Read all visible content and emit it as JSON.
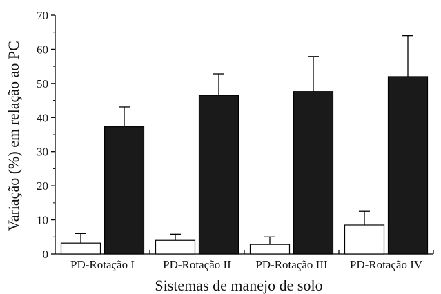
{
  "chart_data": {
    "type": "bar",
    "xlabel": "Sistemas de manejo de solo",
    "ylabel": "Variação (%) em relação ao PC",
    "categories": [
      "PD-Rotação I",
      "PD-Rotação II",
      "PD-Rotação III",
      "PD-Rotação IV"
    ],
    "ylim": [
      0,
      70
    ],
    "yticks": [
      0,
      10,
      20,
      30,
      40,
      50,
      60,
      70
    ],
    "grid": false,
    "series": [
      {
        "color": "#ffffff",
        "values": [
          3.2,
          4.0,
          2.8,
          8.5
        ],
        "errors": [
          2.8,
          1.8,
          2.2,
          4.0
        ]
      },
      {
        "color": "#1a1a1a",
        "values": [
          37.3,
          46.5,
          47.6,
          52.0
        ],
        "errors": [
          5.8,
          6.3,
          10.3,
          12.0
        ]
      }
    ]
  }
}
